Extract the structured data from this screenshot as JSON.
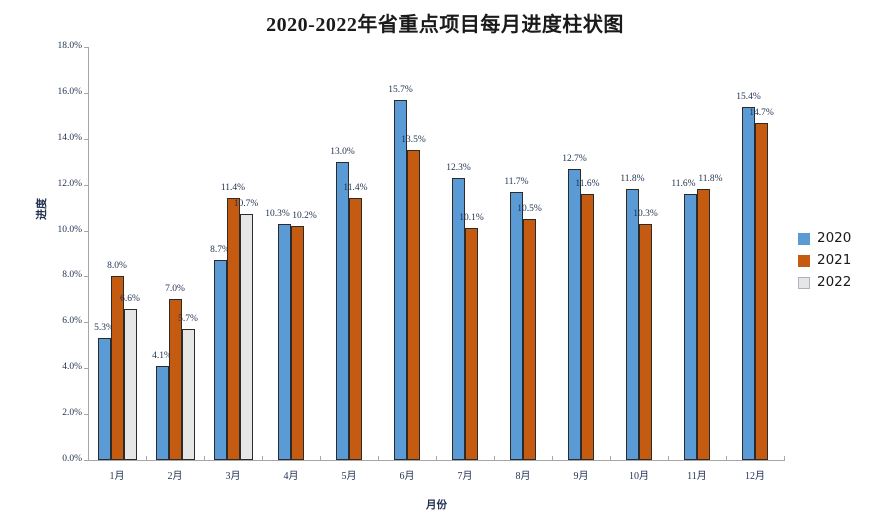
{
  "title": "2020-2022年省重点项目每月进度柱状图",
  "chart_data": {
    "type": "bar",
    "title": "2020-2022年省重点项目每月进度柱状图",
    "xlabel": "月份",
    "ylabel": "进度",
    "categories": [
      "1月",
      "2月",
      "3月",
      "4月",
      "5月",
      "6月",
      "7月",
      "8月",
      "9月",
      "10月",
      "11月",
      "12月"
    ],
    "series": [
      {
        "name": "2020",
        "color": "#5B9BD5",
        "values": [
          5.3,
          4.1,
          8.7,
          10.3,
          13.0,
          15.7,
          12.3,
          11.7,
          12.7,
          11.8,
          11.6,
          15.4
        ]
      },
      {
        "name": "2021",
        "color": "#C55A11",
        "values": [
          8.0,
          7.0,
          11.4,
          10.2,
          11.4,
          13.5,
          10.1,
          10.5,
          11.6,
          10.3,
          11.8,
          14.7
        ]
      },
      {
        "name": "2022",
        "color": "#E7E6E6",
        "values": [
          6.6,
          5.7,
          10.7,
          null,
          null,
          null,
          null,
          null,
          null,
          null,
          null,
          null
        ]
      }
    ],
    "data_labels": [
      [
        "5.3%",
        "4.1%",
        "8.7%",
        "10.3%",
        "13.0%",
        "15.7%",
        "12.3%",
        "11.7%",
        "12.7%",
        "11.8%",
        "11.6%",
        "15.4%"
      ],
      [
        "8.0%",
        "7.0%",
        "11.4%",
        "10.2%",
        "11.4%",
        "13.5%",
        "10.1%",
        "10.5%",
        "11.6%",
        "10.3%",
        "11.8%",
        "14.7%"
      ],
      [
        "6.6%",
        "5.7%",
        "10.7%",
        null,
        null,
        null,
        null,
        null,
        null,
        null,
        null,
        null
      ]
    ],
    "ylim": [
      0,
      18
    ],
    "ytick_step": 2,
    "ytick_labels": [
      "0.0%",
      "2.0%",
      "4.0%",
      "6.0%",
      "8.0%",
      "10.0%",
      "12.0%",
      "14.0%",
      "16.0%",
      "18.0%"
    ],
    "grid": false,
    "legend_position": "right",
    "legend": [
      "2020",
      "2021",
      "2022"
    ]
  },
  "colors": {
    "axis": "#a6a6a6",
    "bar_border": "#2b2b2b",
    "tick_label": "#1f3050",
    "title": "#1a1a1a",
    "series_2020": "#5B9BD5",
    "series_2021": "#C55A11",
    "series_2022": "#E7E6E6"
  }
}
